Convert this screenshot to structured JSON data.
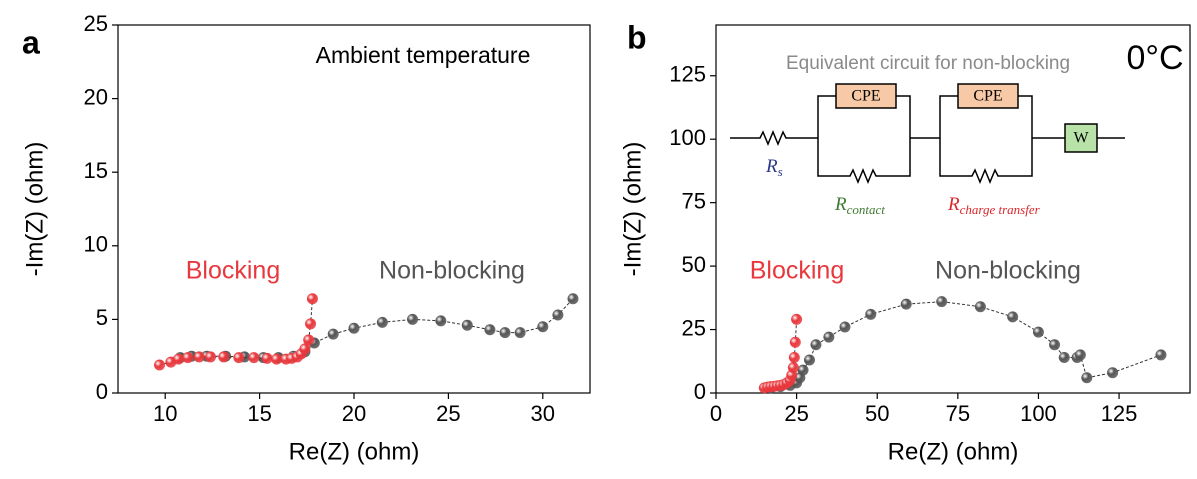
{
  "chart_data": [
    {
      "type": "scatter",
      "panel_label": "a",
      "annotation": "Ambient temperature",
      "xlabel": "Re(Z) (ohm)",
      "ylabel": "-Im(Z) (ohm)",
      "xlim": [
        7.5,
        32.5
      ],
      "ylim": [
        0,
        25
      ],
      "xticks": [
        10,
        15,
        20,
        25,
        30
      ],
      "yticks": [
        0,
        5,
        10,
        15,
        20,
        25
      ],
      "line_color": "#333333",
      "series": [
        {
          "name": "Non-blocking",
          "color": "#555555",
          "x": [
            10.8,
            11.4,
            12.2,
            13.2,
            14.2,
            15.2,
            16.0,
            16.8,
            17.4,
            17.9,
            18.9,
            20.0,
            21.5,
            23.1,
            24.6,
            26.0,
            27.2,
            28.0,
            28.8,
            30.0,
            30.8,
            31.6
          ],
          "values": [
            2.4,
            2.5,
            2.5,
            2.5,
            2.45,
            2.4,
            2.4,
            2.5,
            2.8,
            3.4,
            4.0,
            4.4,
            4.8,
            5.0,
            4.9,
            4.6,
            4.3,
            4.1,
            4.1,
            4.5,
            5.3,
            6.4
          ]
        },
        {
          "name": "Blocking",
          "color": "#e8383d",
          "x": [
            9.7,
            10.3,
            10.7,
            11.2,
            11.8,
            12.4,
            13.1,
            13.9,
            14.7,
            15.4,
            15.9,
            16.4,
            16.7,
            17.0,
            17.2,
            17.4,
            17.6,
            17.7,
            17.8
          ],
          "values": [
            1.9,
            2.1,
            2.3,
            2.4,
            2.45,
            2.45,
            2.45,
            2.4,
            2.4,
            2.35,
            2.3,
            2.3,
            2.35,
            2.45,
            2.65,
            3.0,
            3.6,
            4.7,
            6.4
          ]
        }
      ]
    },
    {
      "type": "scatter",
      "panel_label": "b",
      "annotation": "0°C",
      "xlabel": "Re(Z) (ohm)",
      "ylabel": "-Im(Z) (ohm)",
      "xlim": [
        0,
        147
      ],
      "ylim": [
        0,
        145
      ],
      "xticks": [
        0,
        25,
        50,
        75,
        100,
        125
      ],
      "yticks": [
        0,
        25,
        50,
        75,
        100,
        125
      ],
      "line_color": "#333333",
      "series": [
        {
          "name": "Non-blocking",
          "color": "#555555",
          "x": [
            17,
            20,
            23,
            25,
            26,
            27,
            29,
            31,
            35,
            40,
            48,
            59,
            70,
            82,
            92,
            100,
            105,
            108,
            112,
            113,
            115,
            123,
            138
          ],
          "values": [
            2,
            2.5,
            3,
            4,
            6,
            9,
            13,
            19,
            22,
            26,
            31,
            35,
            36,
            34,
            30,
            24,
            19,
            14,
            14,
            15,
            6,
            8,
            15
          ]
        },
        {
          "name": "Blocking",
          "color": "#e8383d",
          "x": [
            15,
            16,
            17,
            18,
            19,
            20,
            21,
            22,
            23,
            23.5,
            24,
            24.3,
            24.6,
            25
          ],
          "values": [
            2,
            2.3,
            2.5,
            2.6,
            2.8,
            3,
            3.3,
            4,
            5,
            7,
            10,
            14,
            20,
            29
          ]
        }
      ],
      "circuit": {
        "title": "Equivalent circuit for non-blocking",
        "boxes": [
          "CPE",
          "CPE",
          "W"
        ],
        "resistors": [
          {
            "symbol": "R",
            "subscript": "s"
          },
          {
            "symbol": "R",
            "subscript": "contact"
          },
          {
            "symbol": "R",
            "subscript": "charge transfer"
          }
        ]
      }
    }
  ]
}
